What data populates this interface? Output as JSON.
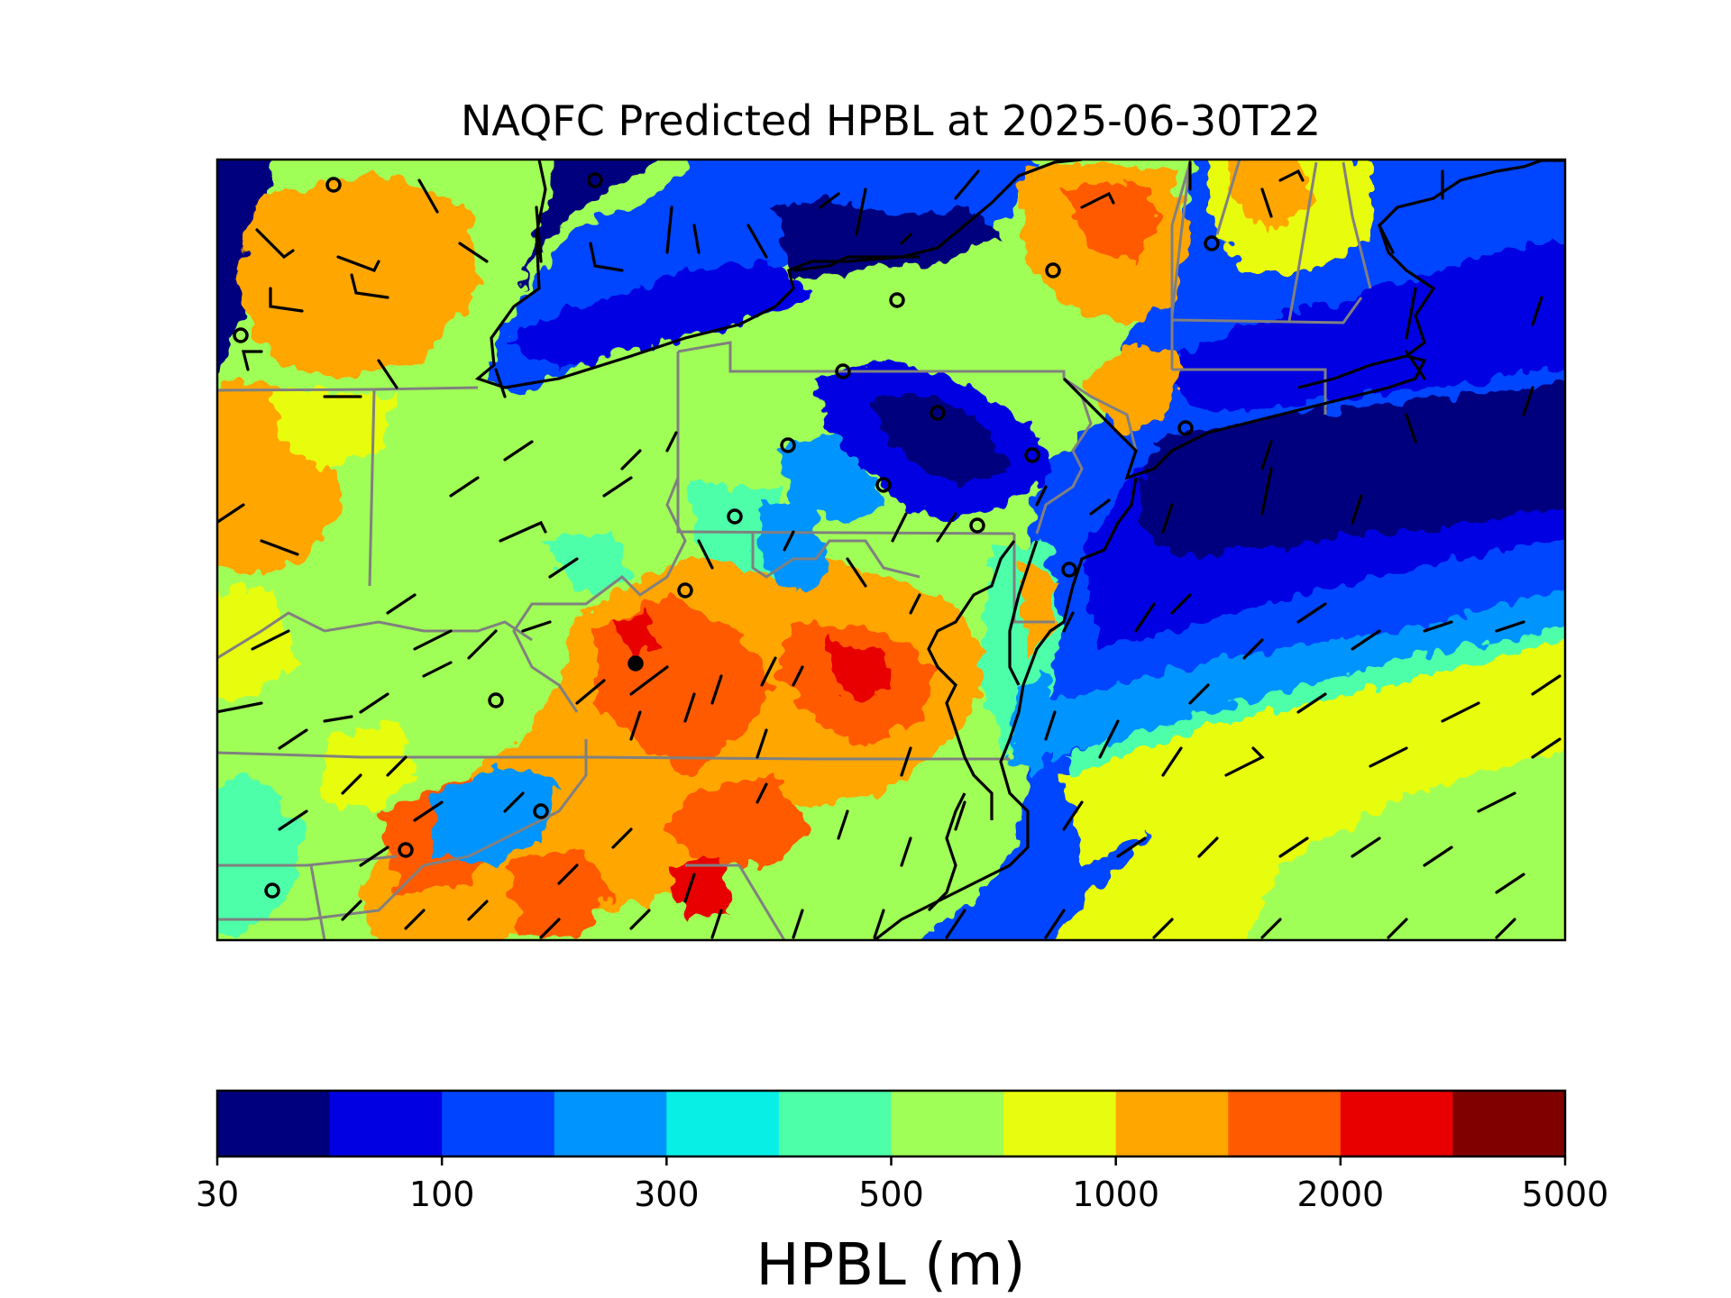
{
  "title": "NAQFC Predicted HPBL at 2025-06-30T22",
  "colorbar": {
    "label": "HPBL (m)",
    "tick_labels": [
      "30",
      "100",
      "300",
      "500",
      "1000",
      "2000",
      "5000"
    ],
    "colors": [
      "#00007f",
      "#0000e3",
      "#0044ff",
      "#0094ff",
      "#08f0e6",
      "#4dffa9",
      "#a0ff56",
      "#e8fc0f",
      "#ffa600",
      "#ff5a00",
      "#e80000",
      "#800000"
    ]
  },
  "map": {
    "field": "HPBL",
    "units": "m",
    "overlays": [
      "coastlines",
      "state-borders",
      "wind-barbs",
      "station-markers"
    ]
  }
}
